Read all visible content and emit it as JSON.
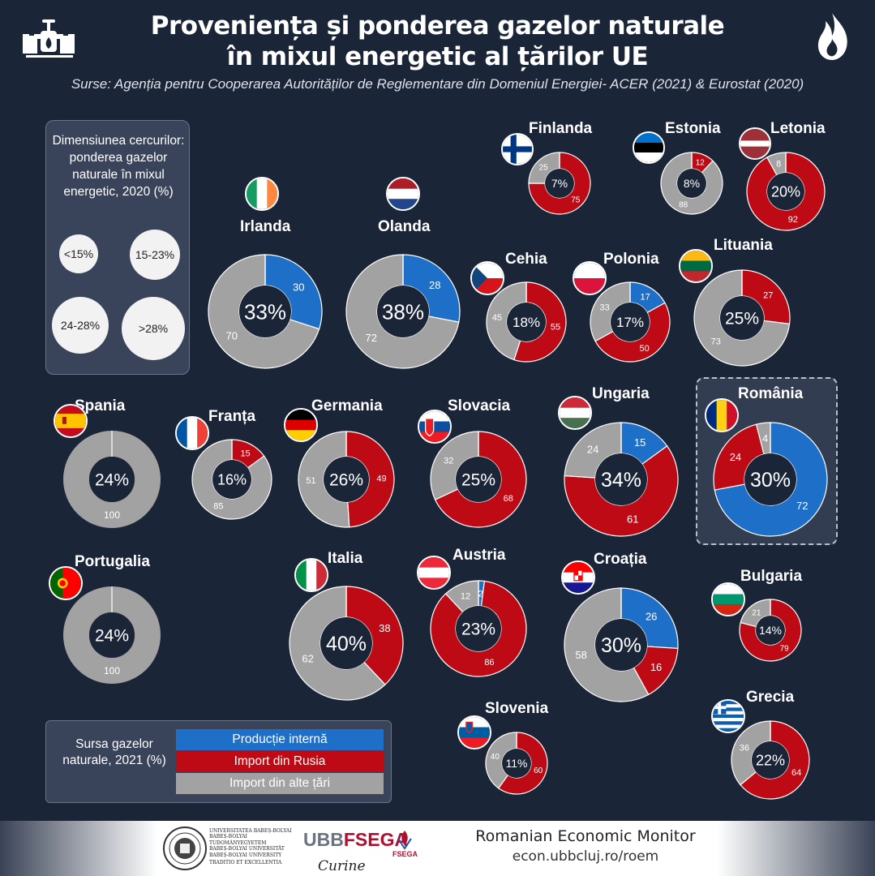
{
  "title_line1": "Proveniența și ponderea gazelor naturale",
  "title_line2": "în mixul energetic al țărilor UE",
  "subtitle": "Surse: Agenția pentru Cooperarea Autorităților de Reglementare din Domeniul Energiei- ACER (2021) & Eurostat (2020)",
  "icons": {
    "left": "gas-pipeline-icon",
    "right": "flame-icon"
  },
  "size_legend": {
    "title": "Dimensiunea cercurilor: ponderea gazelor naturale în mixul energetic, 2020 (%)",
    "bins": [
      "<15%",
      "15-23%",
      "24-28%",
      ">28%"
    ]
  },
  "source_legend": {
    "title": "Sursa gazelor naturale, 2021 (%)",
    "items": [
      {
        "label": "Producție internă",
        "color": "#1e6fc7"
      },
      {
        "label": "Import din Rusia",
        "color": "#bd0a15"
      },
      {
        "label": "Import din alte țări",
        "color": "#a2a2a2"
      }
    ]
  },
  "highlight": "România",
  "chart_data": {
    "type": "donut",
    "title": "Proveniența și ponderea gazelor naturale în mixul energetic al țărilor UE",
    "segment_order": [
      "Producție internă",
      "Import din Rusia",
      "Import din alte țări"
    ],
    "colors": {
      "Producție internă": "#1e6fc7",
      "Import din Rusia": "#bd0a15",
      "Import din alte țări": "#a2a2a2"
    },
    "countries": [
      {
        "name": "Irlanda",
        "share": "33%",
        "values": [
          30,
          0,
          70
        ],
        "flag": "ireland-flag"
      },
      {
        "name": "Olanda",
        "share": "38%",
        "values": [
          28,
          0,
          72
        ],
        "flag": "netherlands-flag"
      },
      {
        "name": "Finlanda",
        "share": "7%",
        "values": [
          0,
          75,
          25
        ],
        "flag": "finland-flag"
      },
      {
        "name": "Estonia",
        "share": "8%",
        "values": [
          0,
          12,
          88
        ],
        "flag": "estonia-flag"
      },
      {
        "name": "Letonia",
        "share": "20%",
        "values": [
          0,
          92,
          8
        ],
        "flag": "latvia-flag"
      },
      {
        "name": "Cehia",
        "share": "18%",
        "values": [
          0,
          55,
          45
        ],
        "flag": "czechia-flag"
      },
      {
        "name": "Polonia",
        "share": "17%",
        "values": [
          17,
          50,
          33
        ],
        "flag": "poland-flag"
      },
      {
        "name": "Lituania",
        "share": "25%",
        "values": [
          0,
          27,
          73
        ],
        "flag": "lithuania-flag"
      },
      {
        "name": "Spania",
        "share": "24%",
        "values": [
          0,
          0,
          100
        ],
        "flag": "spain-flag"
      },
      {
        "name": "Franța",
        "share": "16%",
        "values": [
          0,
          15,
          85
        ],
        "flag": "france-flag"
      },
      {
        "name": "Germania",
        "share": "26%",
        "values": [
          0,
          49,
          51
        ],
        "flag": "germany-flag"
      },
      {
        "name": "Slovacia",
        "share": "25%",
        "values": [
          0,
          68,
          32
        ],
        "flag": "slovakia-flag"
      },
      {
        "name": "Ungaria",
        "share": "34%",
        "values": [
          15,
          61,
          24
        ],
        "flag": "hungary-flag"
      },
      {
        "name": "România",
        "share": "30%",
        "values": [
          72,
          24,
          4
        ],
        "flag": "romania-flag"
      },
      {
        "name": "Portugalia",
        "share": "24%",
        "values": [
          0,
          0,
          100
        ],
        "flag": "portugal-flag"
      },
      {
        "name": "Italia",
        "share": "40%",
        "values": [
          0,
          38,
          62
        ],
        "flag": "italy-flag"
      },
      {
        "name": "Austria",
        "share": "23%",
        "values": [
          2,
          86,
          12
        ],
        "flag": "austria-flag"
      },
      {
        "name": "Croația",
        "share": "30%",
        "values": [
          26,
          16,
          58
        ],
        "flag": "croatia-flag"
      },
      {
        "name": "Bulgaria",
        "share": "14%",
        "values": [
          0,
          79,
          21
        ],
        "flag": "bulgaria-flag"
      },
      {
        "name": "Grecia",
        "share": "22%",
        "values": [
          0,
          64,
          36
        ],
        "flag": "greece-flag"
      },
      {
        "name": "Slovenia",
        "share": "11%",
        "values": [
          0,
          60,
          40
        ],
        "flag": "slovenia-flag"
      }
    ]
  },
  "footer": {
    "university": [
      "UNIVERSITATEA BABEȘ-BOLYAI",
      "BABEȘ-BOLYAI TUDOMÁNYEGYETEM",
      "BABEȘ-BOLYAI UNIVERSITÄT",
      "BABEȘ-BOLYAI UNIVERSITY",
      "TRADITIO ET EXCELLENTIA"
    ],
    "faculty_logo_a": "UBB",
    "faculty_logo_b": "FSEGA",
    "faculty_logo_small": "FSEGA",
    "faculty_signature": "Curine",
    "monitor_title": "Romanian Economic Monitor",
    "monitor_url": "econ.ubbcluj.ro/roem"
  }
}
